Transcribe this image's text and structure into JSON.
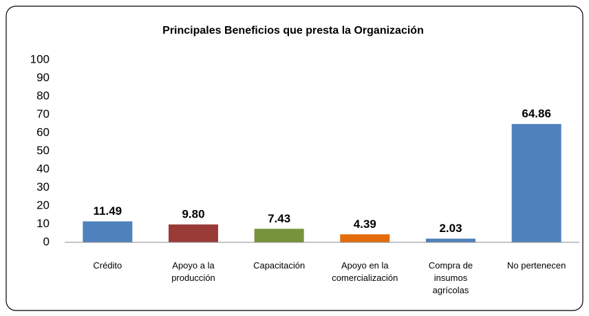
{
  "chart_data": {
    "type": "bar",
    "title": "Principales Beneficios que presta la Organización",
    "categories": [
      "Crédito",
      "Apoyo a la producción",
      "Capacitación",
      "Apoyo en la comercialización",
      "Compra de insumos agrícolas",
      "No pertenecen"
    ],
    "values": [
      11.49,
      9.8,
      7.43,
      4.39,
      2.03,
      64.86
    ],
    "value_labels": [
      "11.49",
      "9.80",
      "7.43",
      "4.39",
      "2.03",
      "64.86"
    ],
    "colors": [
      "#4f81bd",
      "#9b3b38",
      "#77933c",
      "#e46c0a",
      "#4f81bd",
      "#4f81bd"
    ],
    "ylim": [
      0,
      100
    ],
    "yticks": [
      0,
      10,
      20,
      30,
      40,
      50,
      60,
      70,
      80,
      90,
      100
    ],
    "grid": false
  }
}
